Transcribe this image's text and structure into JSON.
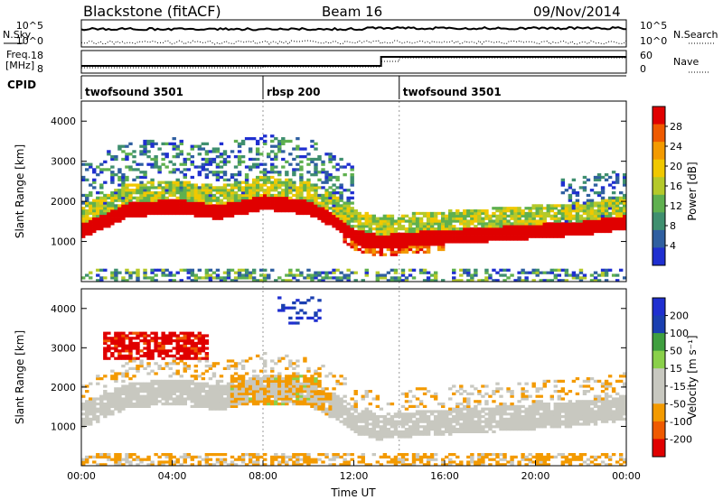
{
  "header": {
    "station": "Blackstone (fitACF)",
    "beam": "Beam 16",
    "date": "09/Nov/2014"
  },
  "aux_panels": {
    "nsky_label": "N.Sky",
    "nsearch_label": "N.Search",
    "noise_ticks": [
      "10^5",
      "10^0"
    ],
    "freq_label_1": "Freq.",
    "freq_label_2": "[MHz]",
    "freq_ticks": [
      "18",
      "8"
    ],
    "nave_label": "Nave",
    "nave_ticks": [
      "60",
      "0"
    ],
    "cpid_label": "CPID"
  },
  "cpid_segments": [
    {
      "start_hour": 0.0,
      "name": "twofsound 3501"
    },
    {
      "start_hour": 8.0,
      "name": "rbsp 200"
    },
    {
      "start_hour": 14.0,
      "name": "twofsound 3501"
    }
  ],
  "colors": {
    "power": [
      "#1f2fd0",
      "#2f5fa0",
      "#3f8f6f",
      "#5fb04f",
      "#b5c92a",
      "#f0c800",
      "#f39a00",
      "#ef5a00",
      "#e00000"
    ],
    "velocity": [
      "#e00000",
      "#ef5a00",
      "#f39a00",
      "#c8c8c0",
      "#c8c8c0",
      "#8ad04a",
      "#3f9f3f",
      "#1a3fb0",
      "#1f2fd0"
    ]
  },
  "chart_data": [
    {
      "type": "heatmap",
      "name": "power",
      "xlabel": "",
      "ylabel": "Slant Range [km]",
      "xlim": [
        0,
        24
      ],
      "ylim": [
        0,
        4500
      ],
      "yticks": [
        "4000",
        "3000",
        "2000",
        "1000"
      ],
      "colorbar_label": "Power [dB]",
      "colorbar_ticks": [
        "28",
        "24",
        "20",
        "16",
        "12",
        "8",
        "4"
      ],
      "colorbar_range": [
        0,
        32
      ],
      "main_echo_band_km": [
        [
          0,
          1250
        ],
        [
          2,
          1750
        ],
        [
          4,
          1850
        ],
        [
          6,
          1700
        ],
        [
          8,
          1950
        ],
        [
          10,
          1800
        ],
        [
          11,
          1500
        ],
        [
          12,
          1100
        ],
        [
          13,
          950
        ],
        [
          15,
          1050
        ],
        [
          18,
          1150
        ],
        [
          22,
          1300
        ],
        [
          24,
          1450
        ]
      ]
    },
    {
      "type": "heatmap",
      "name": "velocity",
      "xlabel": "Time UT",
      "ylabel": "Slant Range [km]",
      "xlim": [
        0,
        24
      ],
      "ylim": [
        0,
        4500
      ],
      "xticks": [
        "00:00",
        "04:00",
        "08:00",
        "12:00",
        "16:00",
        "20:00",
        "00:00"
      ],
      "yticks": [
        "4000",
        "3000",
        "2000",
        "1000"
      ],
      "colorbar_label": "Velocity [m s⁻¹]",
      "colorbar_ticks": [
        "200",
        "100",
        "50",
        "15",
        "-15",
        "-50",
        "-100",
        "-200"
      ],
      "colorbar_range": [
        -250,
        250
      ]
    }
  ]
}
